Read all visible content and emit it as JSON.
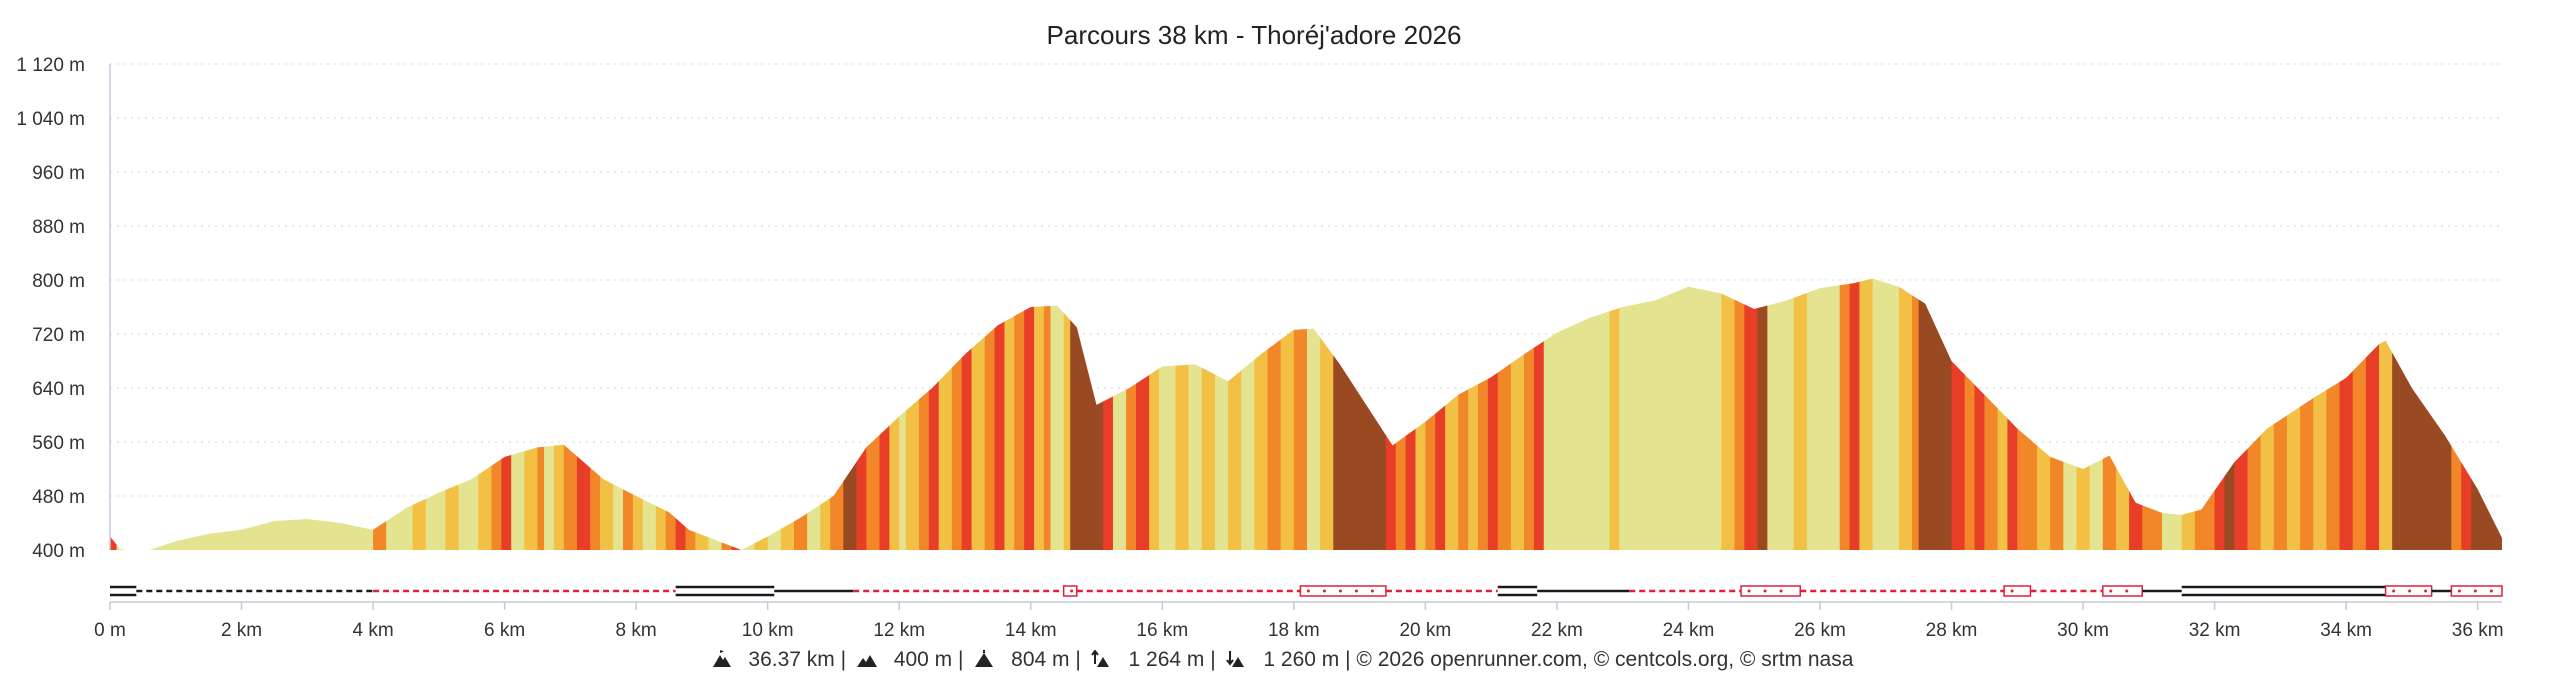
{
  "chart_data": {
    "type": "area",
    "title": "Parcours 38 km - Thoréj'adore 2026",
    "x_unit": "km",
    "y_unit": "m",
    "xlim": [
      0,
      36.37
    ],
    "ylim": [
      400,
      1120
    ],
    "grid": true,
    "y_ticks": [
      "400 m",
      "480 m",
      "560 m",
      "640 m",
      "720 m",
      "800 m",
      "880 m",
      "960 m",
      "1 040 m",
      "1 120 m"
    ],
    "x_ticks": [
      "0 m",
      "2 km",
      "4 km",
      "6 km",
      "8 km",
      "10 km",
      "12 km",
      "14 km",
      "16 km",
      "18 km",
      "20 km",
      "22 km",
      "24 km",
      "26 km",
      "28 km",
      "30 km",
      "32 km",
      "34 km",
      "36 km"
    ],
    "profile": {
      "distance_km": [
        0,
        0.15,
        0.3,
        0.6,
        1.0,
        1.5,
        2.0,
        2.5,
        3.0,
        3.5,
        4.0,
        4.5,
        5.0,
        5.5,
        6.0,
        6.5,
        6.9,
        7.5,
        8.0,
        8.5,
        8.8,
        9.2,
        9.6,
        10.0,
        10.5,
        11.0,
        11.5,
        12.0,
        12.5,
        13.0,
        13.5,
        14.0,
        14.4,
        14.7,
        15.0,
        15.5,
        16.0,
        16.5,
        17.0,
        17.5,
        18.0,
        18.3,
        18.7,
        19.2,
        19.5,
        20.0,
        20.5,
        21.0,
        21.5,
        22.0,
        22.5,
        23.0,
        23.5,
        24.0,
        24.5,
        25.0,
        25.5,
        26.0,
        26.5,
        26.8,
        27.2,
        27.6,
        28.0,
        28.5,
        29.0,
        29.5,
        30.0,
        30.4,
        30.8,
        31.2,
        31.5,
        31.8,
        32.3,
        32.8,
        33.5,
        34.0,
        34.5,
        34.6,
        35.0,
        35.5,
        36.0,
        36.37
      ],
      "elevation_m": [
        420,
        402,
        398,
        400,
        413,
        424,
        430,
        443,
        446,
        440,
        430,
        462,
        485,
        505,
        538,
        552,
        556,
        505,
        480,
        456,
        430,
        415,
        400,
        420,
        448,
        480,
        552,
        598,
        640,
        690,
        733,
        760,
        762,
        730,
        615,
        640,
        672,
        675,
        650,
        690,
        726,
        728,
        675,
        600,
        555,
        590,
        630,
        656,
        690,
        722,
        744,
        760,
        770,
        790,
        780,
        757,
        770,
        788,
        795,
        802,
        790,
        765,
        680,
        630,
        580,
        538,
        520,
        540,
        470,
        455,
        452,
        460,
        530,
        580,
        625,
        655,
        705,
        710,
        640,
        570,
        490,
        418
      ]
    },
    "slope_colors": [
      "#e4e38f",
      "#f2c044",
      "#f18728",
      "#e83e27",
      "#9a4a22"
    ],
    "slope_bands": [
      [
        0,
        0.1,
        3
      ],
      [
        0.1,
        0.4,
        0
      ],
      [
        0.4,
        4.0,
        0
      ],
      [
        4.0,
        4.2,
        2
      ],
      [
        4.2,
        4.6,
        0
      ],
      [
        4.6,
        4.8,
        1
      ],
      [
        4.8,
        5.1,
        0
      ],
      [
        5.1,
        5.3,
        1
      ],
      [
        5.3,
        5.6,
        0
      ],
      [
        5.6,
        5.8,
        1
      ],
      [
        5.8,
        5.95,
        2
      ],
      [
        5.95,
        6.1,
        3
      ],
      [
        6.1,
        6.3,
        0
      ],
      [
        6.3,
        6.5,
        1
      ],
      [
        6.5,
        6.6,
        2
      ],
      [
        6.6,
        6.75,
        0
      ],
      [
        6.75,
        6.9,
        1
      ],
      [
        6.9,
        7.1,
        2
      ],
      [
        7.1,
        7.3,
        3
      ],
      [
        7.3,
        7.45,
        2
      ],
      [
        7.45,
        7.65,
        1
      ],
      [
        7.65,
        7.8,
        0
      ],
      [
        7.8,
        7.95,
        2
      ],
      [
        7.95,
        8.1,
        1
      ],
      [
        8.1,
        8.3,
        0
      ],
      [
        8.3,
        8.45,
        1
      ],
      [
        8.45,
        8.6,
        2
      ],
      [
        8.6,
        8.75,
        3
      ],
      [
        8.75,
        8.9,
        2
      ],
      [
        8.9,
        9.1,
        1
      ],
      [
        9.1,
        9.3,
        0
      ],
      [
        9.3,
        9.45,
        2
      ],
      [
        9.45,
        9.6,
        3
      ],
      [
        9.6,
        9.8,
        0
      ],
      [
        9.8,
        10.0,
        1
      ],
      [
        10.0,
        10.2,
        0
      ],
      [
        10.2,
        10.4,
        1
      ],
      [
        10.4,
        10.6,
        2
      ],
      [
        10.6,
        10.8,
        0
      ],
      [
        10.8,
        10.95,
        1
      ],
      [
        10.95,
        11.15,
        2
      ],
      [
        11.15,
        11.35,
        4
      ],
      [
        11.35,
        11.5,
        3
      ],
      [
        11.5,
        11.7,
        2
      ],
      [
        11.7,
        11.85,
        3
      ],
      [
        11.85,
        12.0,
        1
      ],
      [
        12.0,
        12.1,
        0
      ],
      [
        12.1,
        12.3,
        1
      ],
      [
        12.3,
        12.45,
        2
      ],
      [
        12.45,
        12.6,
        3
      ],
      [
        12.6,
        12.8,
        1
      ],
      [
        12.8,
        12.95,
        2
      ],
      [
        12.95,
        13.1,
        3
      ],
      [
        13.1,
        13.3,
        1
      ],
      [
        13.3,
        13.45,
        2
      ],
      [
        13.45,
        13.6,
        3
      ],
      [
        13.6,
        13.75,
        1
      ],
      [
        13.75,
        13.9,
        2
      ],
      [
        13.9,
        14.05,
        3
      ],
      [
        14.05,
        14.2,
        1
      ],
      [
        14.2,
        14.3,
        2
      ],
      [
        14.3,
        14.5,
        0
      ],
      [
        14.5,
        14.6,
        1
      ],
      [
        14.6,
        15.1,
        4
      ],
      [
        15.1,
        15.25,
        3
      ],
      [
        15.25,
        15.45,
        0
      ],
      [
        15.45,
        15.6,
        2
      ],
      [
        15.6,
        15.8,
        3
      ],
      [
        15.8,
        15.95,
        1
      ],
      [
        15.95,
        16.2,
        0
      ],
      [
        16.2,
        16.4,
        1
      ],
      [
        16.4,
        16.6,
        0
      ],
      [
        16.6,
        16.8,
        1
      ],
      [
        16.8,
        17.0,
        0
      ],
      [
        17.0,
        17.2,
        1
      ],
      [
        17.2,
        17.4,
        0
      ],
      [
        17.4,
        17.6,
        1
      ],
      [
        17.6,
        17.8,
        2
      ],
      [
        17.8,
        18.0,
        1
      ],
      [
        18.0,
        18.2,
        2
      ],
      [
        18.2,
        18.4,
        0
      ],
      [
        18.4,
        18.6,
        1
      ],
      [
        18.6,
        19.4,
        4
      ],
      [
        19.4,
        19.55,
        3
      ],
      [
        19.55,
        19.7,
        2
      ],
      [
        19.7,
        19.85,
        3
      ],
      [
        19.85,
        20.0,
        1
      ],
      [
        20.0,
        20.15,
        2
      ],
      [
        20.15,
        20.3,
        3
      ],
      [
        20.3,
        20.5,
        1
      ],
      [
        20.5,
        20.65,
        2
      ],
      [
        20.65,
        20.8,
        1
      ],
      [
        20.8,
        20.95,
        2
      ],
      [
        20.95,
        21.1,
        3
      ],
      [
        21.1,
        21.3,
        2
      ],
      [
        21.3,
        21.5,
        1
      ],
      [
        21.5,
        21.65,
        2
      ],
      [
        21.65,
        21.8,
        3
      ],
      [
        21.8,
        22.8,
        0
      ],
      [
        22.8,
        22.95,
        1
      ],
      [
        22.95,
        24.5,
        0
      ],
      [
        24.5,
        24.7,
        1
      ],
      [
        24.7,
        24.85,
        2
      ],
      [
        24.85,
        25.05,
        3
      ],
      [
        25.05,
        25.2,
        4
      ],
      [
        25.2,
        25.6,
        0
      ],
      [
        25.6,
        25.8,
        1
      ],
      [
        25.8,
        26.3,
        0
      ],
      [
        26.3,
        26.45,
        2
      ],
      [
        26.45,
        26.6,
        3
      ],
      [
        26.6,
        26.8,
        1
      ],
      [
        26.8,
        27.2,
        0
      ],
      [
        27.2,
        27.4,
        1
      ],
      [
        27.4,
        27.5,
        2
      ],
      [
        27.5,
        28.0,
        4
      ],
      [
        28.0,
        28.2,
        3
      ],
      [
        28.2,
        28.35,
        2
      ],
      [
        28.35,
        28.5,
        3
      ],
      [
        28.5,
        28.7,
        2
      ],
      [
        28.7,
        28.85,
        1
      ],
      [
        28.85,
        29.0,
        3
      ],
      [
        29.0,
        29.3,
        2
      ],
      [
        29.3,
        29.5,
        1
      ],
      [
        29.5,
        29.7,
        2
      ],
      [
        29.7,
        29.9,
        0
      ],
      [
        29.9,
        30.1,
        1
      ],
      [
        30.1,
        30.3,
        0
      ],
      [
        30.3,
        30.5,
        2
      ],
      [
        30.5,
        30.7,
        1
      ],
      [
        30.7,
        30.9,
        3
      ],
      [
        30.9,
        31.2,
        2
      ],
      [
        31.2,
        31.5,
        0
      ],
      [
        31.5,
        31.7,
        1
      ],
      [
        31.7,
        32.0,
        2
      ],
      [
        32.0,
        32.15,
        3
      ],
      [
        32.15,
        32.3,
        4
      ],
      [
        32.3,
        32.5,
        3
      ],
      [
        32.5,
        32.7,
        2
      ],
      [
        32.7,
        32.9,
        1
      ],
      [
        32.9,
        33.1,
        2
      ],
      [
        33.1,
        33.3,
        1
      ],
      [
        33.3,
        33.5,
        2
      ],
      [
        33.5,
        33.7,
        1
      ],
      [
        33.7,
        33.9,
        2
      ],
      [
        33.9,
        34.1,
        3
      ],
      [
        34.1,
        34.3,
        2
      ],
      [
        34.3,
        34.5,
        3
      ],
      [
        34.5,
        34.7,
        1
      ],
      [
        34.7,
        35.6,
        4
      ],
      [
        35.6,
        35.75,
        2
      ],
      [
        35.75,
        35.9,
        3
      ],
      [
        35.9,
        36.37,
        4
      ]
    ],
    "surface_segments": [
      [
        0,
        0.4,
        "paved"
      ],
      [
        0.4,
        4.0,
        "dashed"
      ],
      [
        4.0,
        8.6,
        "trail"
      ],
      [
        8.6,
        10.1,
        "paved"
      ],
      [
        10.1,
        11.3,
        "road"
      ],
      [
        11.3,
        14.5,
        "trail"
      ],
      [
        14.5,
        14.7,
        "path"
      ],
      [
        14.7,
        18.1,
        "trail"
      ],
      [
        18.1,
        19.4,
        "path"
      ],
      [
        19.4,
        21.1,
        "trail"
      ],
      [
        21.1,
        21.7,
        "paved"
      ],
      [
        21.7,
        23.1,
        "road"
      ],
      [
        23.1,
        24.8,
        "trail"
      ],
      [
        24.8,
        25.7,
        "path"
      ],
      [
        25.7,
        28.8,
        "trail"
      ],
      [
        28.8,
        29.2,
        "path"
      ],
      [
        29.2,
        30.3,
        "trail"
      ],
      [
        30.3,
        30.9,
        "path"
      ],
      [
        30.9,
        31.5,
        "road"
      ],
      [
        31.5,
        34.6,
        "paved"
      ],
      [
        34.6,
        35.3,
        "path"
      ],
      [
        35.3,
        35.6,
        "road"
      ],
      [
        35.6,
        36.37,
        "path"
      ]
    ]
  },
  "footer": {
    "distance": "36.37 km",
    "min_alt": "400 m",
    "max_alt": "804 m",
    "ascent": "1 264 m",
    "descent": "1 260 m",
    "credits": "© 2026 openrunner.com, © centcols.org, © srtm nasa"
  }
}
